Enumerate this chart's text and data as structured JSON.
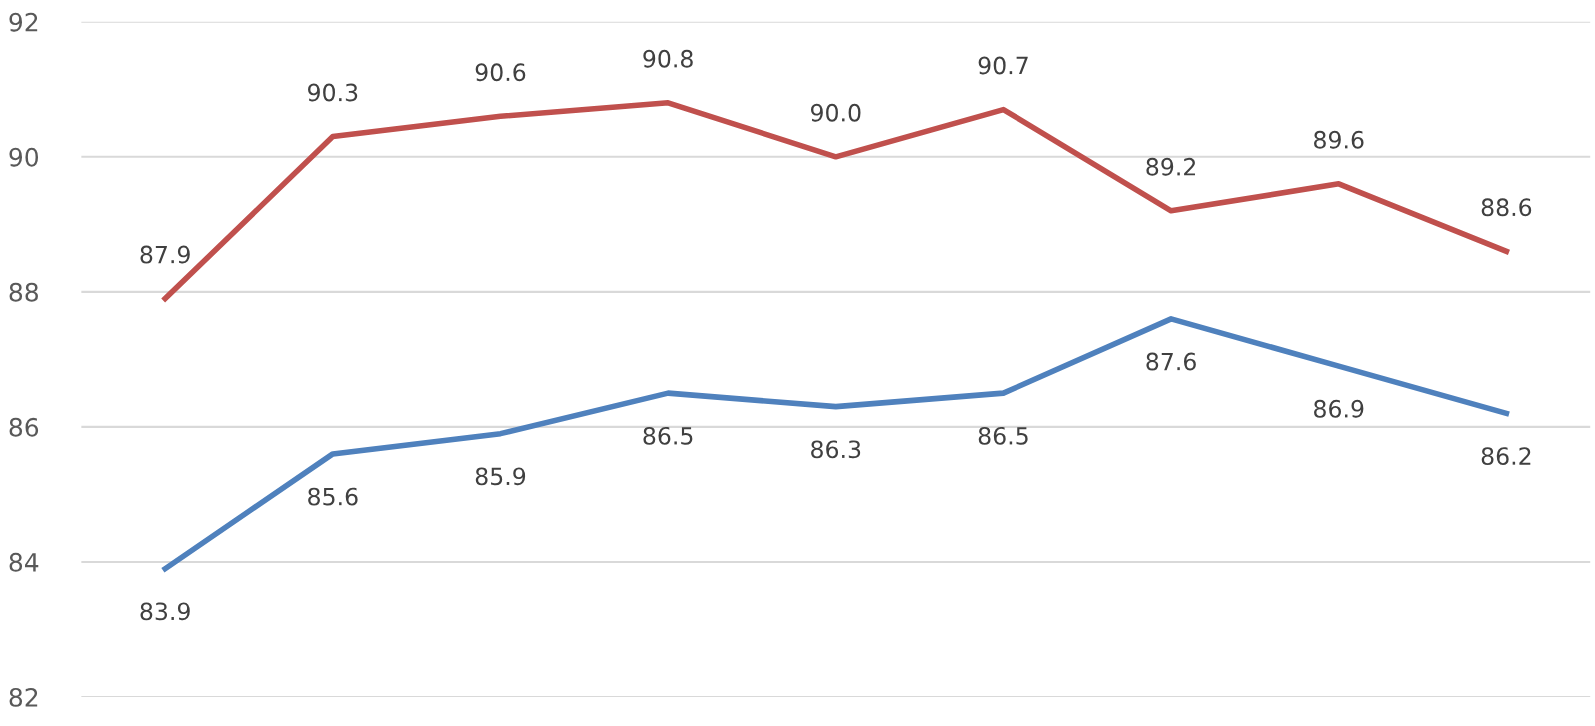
{
  "chart_data": {
    "type": "line",
    "categories": [
      null,
      null,
      null,
      null,
      null,
      null,
      null,
      null,
      null
    ],
    "series": [
      {
        "color": "#4f81bd",
        "values": [
          83.9,
          85.6,
          85.9,
          86.5,
          86.3,
          86.5,
          87.6,
          86.9,
          86.2
        ],
        "value_labels": [
          "83.9",
          "85.6",
          "85.9",
          "86.5",
          "86.3",
          "86.5",
          "87.6",
          "86.9",
          "86.2"
        ]
      },
      {
        "color": "#c0504d",
        "values": [
          87.9,
          90.3,
          90.6,
          90.8,
          90.0,
          90.7,
          89.2,
          89.6,
          88.6
        ],
        "value_labels": [
          "87.9",
          "90.3",
          "90.6",
          "90.8",
          "90.0",
          "90.7",
          "89.2",
          "89.6",
          "88.6"
        ]
      }
    ],
    "ylim": [
      82,
      92
    ],
    "yticks": [
      82,
      84,
      86,
      88,
      90,
      92
    ],
    "grid": "y",
    "legend": false,
    "marker": "none",
    "line_style": "solid"
  }
}
